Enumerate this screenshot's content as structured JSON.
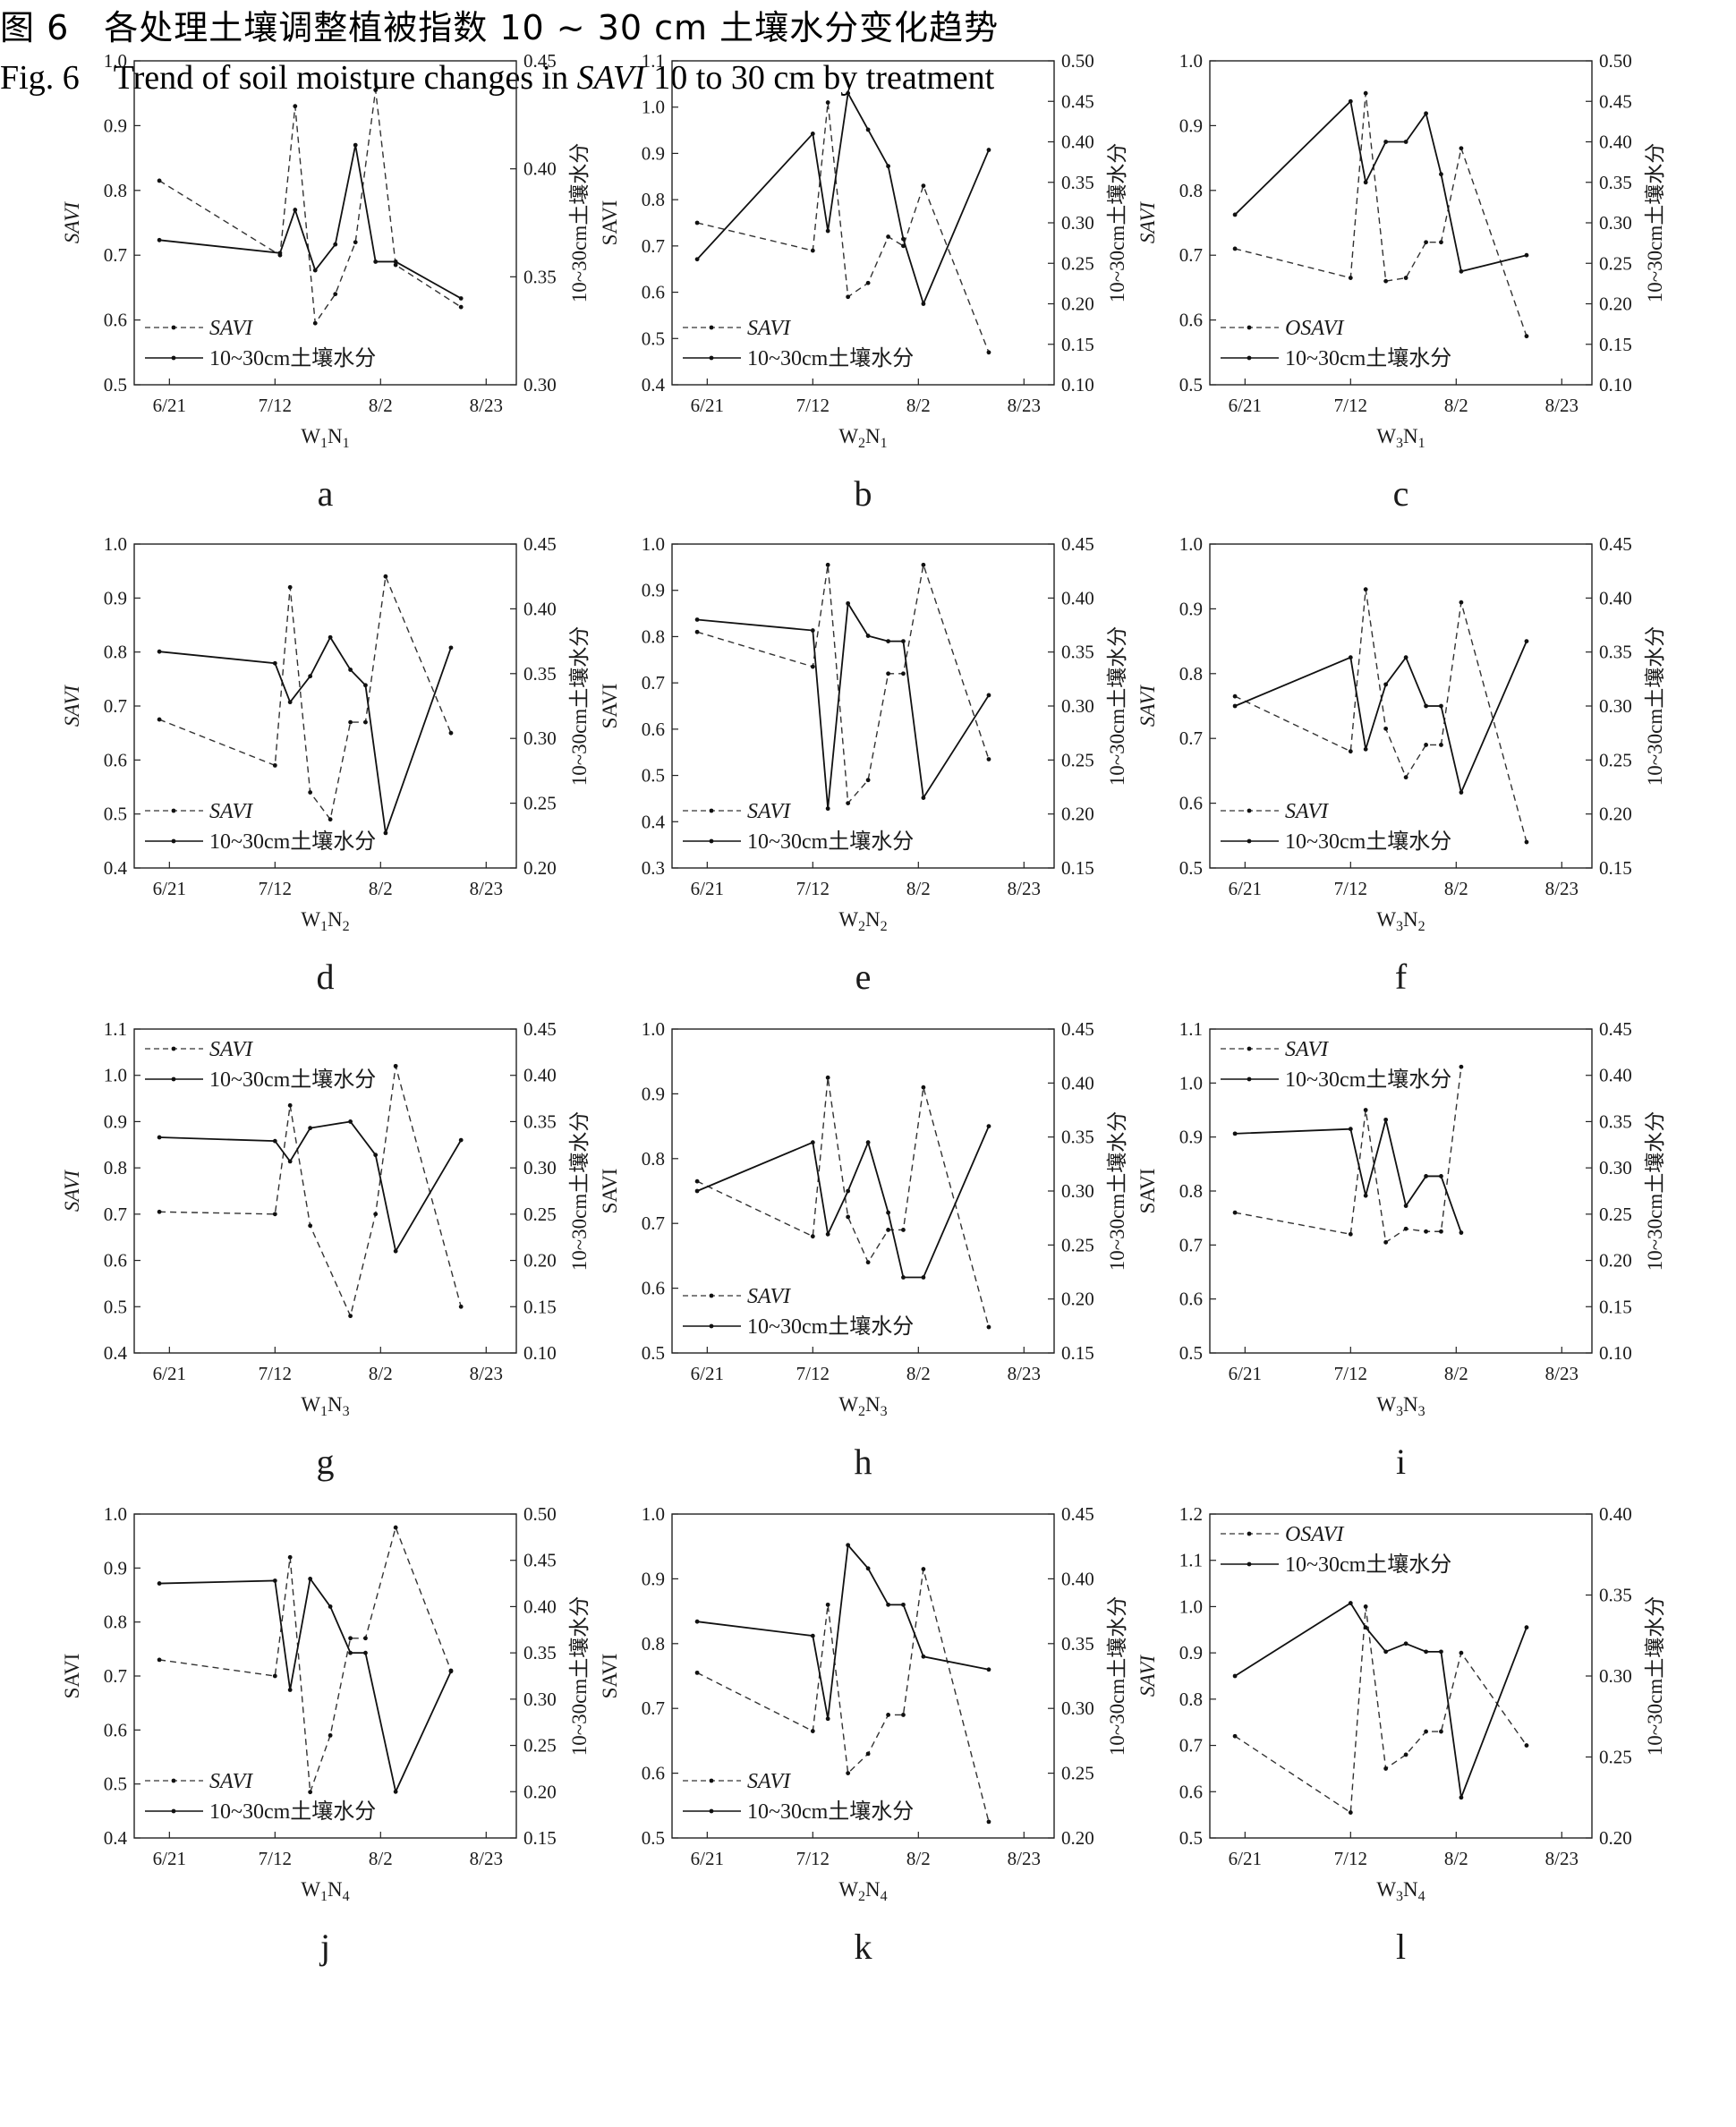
{
  "figure": {
    "caption_cn": "图 6　各处理土壤调整植被指数 10 ~ 30 cm 土壤水分变化趋势",
    "caption_en_prefix": "Fig. 6　Trend of soil moisture changes in ",
    "caption_en_savi": "SAVI",
    "caption_en_suffix": " 10 to 30 cm by treatment",
    "caption_color": "#e8772e",
    "x_tick_labels": [
      "6/21",
      "7/12",
      "8/2",
      "8/23"
    ],
    "right_axis_label": "10~30cm土壤水分",
    "soil_series_label": "10~30cm土壤水分"
  },
  "chart_data": [
    {
      "type": "line",
      "panel": "a",
      "xlabel_main": "W",
      "s1": "1",
      "s2": "N",
      "s3": "1",
      "ylabel": "SAVI",
      "ylabel_italic": true,
      "legend_savi": "SAVI",
      "legend_pos": "bottom-left",
      "ylim": [
        0.5,
        1.0
      ],
      "yticks": [
        "0.5",
        "0.6",
        "0.7",
        "0.8",
        "0.9",
        "1.0"
      ],
      "y2lim": [
        0.3,
        0.45
      ],
      "y2ticks": [
        "0.30",
        "0.35",
        "0.40",
        "0.45"
      ],
      "savi": {
        "x": [
          "6/19",
          "7/13",
          "7/16",
          "7/20",
          "7/24",
          "7/28",
          "8/1",
          "8/5",
          "8/18"
        ],
        "y": [
          0.815,
          0.7,
          0.93,
          0.595,
          0.64,
          0.72,
          0.955,
          0.685,
          0.62
        ]
      },
      "soil": {
        "x": [
          "6/19",
          "7/13",
          "7/16",
          "7/20",
          "7/24",
          "7/28",
          "8/1",
          "8/5",
          "8/18"
        ],
        "y": [
          0.367,
          0.361,
          0.381,
          0.353,
          0.365,
          0.411,
          0.357,
          0.357,
          0.34
        ]
      }
    },
    {
      "type": "line",
      "panel": "b",
      "xlabel_main": "W",
      "s1": "2",
      "s2": "N",
      "s3": "1",
      "ylabel": "SAVI",
      "ylabel_italic": false,
      "legend_savi": "SAVI",
      "legend_pos": "bottom-left",
      "ylim": [
        0.4,
        1.1
      ],
      "yticks": [
        "0.4",
        "0.5",
        "0.6",
        "0.7",
        "0.8",
        "0.9",
        "1.0",
        "1.1"
      ],
      "y2lim": [
        0.1,
        0.5
      ],
      "y2ticks": [
        "0.10",
        "0.15",
        "0.20",
        "0.25",
        "0.30",
        "0.35",
        "0.40",
        "0.45",
        "0.50"
      ],
      "savi": {
        "x": [
          "6/19",
          "7/12",
          "7/15",
          "7/19",
          "7/23",
          "7/27",
          "7/30",
          "8/3",
          "8/16"
        ],
        "y": [
          0.75,
          0.69,
          1.01,
          0.59,
          0.62,
          0.72,
          0.7,
          0.83,
          0.47
        ]
      },
      "soil": {
        "x": [
          "6/19",
          "7/12",
          "7/15",
          "7/19",
          "7/23",
          "7/27",
          "7/30",
          "8/3",
          "8/16"
        ],
        "y": [
          0.255,
          0.41,
          0.29,
          0.46,
          0.415,
          0.37,
          0.28,
          0.2,
          0.39
        ]
      }
    },
    {
      "type": "line",
      "panel": "c",
      "xlabel_main": "W",
      "s1": "3",
      "s2": "N",
      "s3": "1",
      "ylabel": "SAVI",
      "ylabel_italic": true,
      "legend_savi": "OSAVI",
      "legend_pos": "bottom-left",
      "ylim": [
        0.5,
        1.0
      ],
      "yticks": [
        "0.5",
        "0.6",
        "0.7",
        "0.8",
        "0.9",
        "1.0"
      ],
      "y2lim": [
        0.1,
        0.5
      ],
      "y2ticks": [
        "0.10",
        "0.15",
        "0.20",
        "0.25",
        "0.30",
        "0.35",
        "0.40",
        "0.45",
        "0.50"
      ],
      "savi": {
        "x": [
          "6/19",
          "7/12",
          "7/15",
          "7/19",
          "7/23",
          "7/27",
          "7/30",
          "8/3",
          "8/16"
        ],
        "y": [
          0.71,
          0.665,
          0.95,
          0.66,
          0.665,
          0.72,
          0.72,
          0.865,
          0.575
        ]
      },
      "soil": {
        "x": [
          "6/19",
          "7/12",
          "7/15",
          "7/19",
          "7/23",
          "7/27",
          "7/30",
          "8/3",
          "8/16"
        ],
        "y": [
          0.31,
          0.45,
          0.35,
          0.4,
          0.4,
          0.435,
          0.36,
          0.24,
          0.26
        ]
      }
    },
    {
      "type": "line",
      "panel": "d",
      "xlabel_main": "W",
      "s1": "1",
      "s2": "N",
      "s3": "2",
      "ylabel": "SAVI",
      "ylabel_italic": true,
      "legend_savi": "SAVI",
      "legend_pos": "bottom-left",
      "ylim": [
        0.4,
        1.0
      ],
      "yticks": [
        "0.4",
        "0.5",
        "0.6",
        "0.7",
        "0.8",
        "0.9",
        "1.0"
      ],
      "y2lim": [
        0.2,
        0.45
      ],
      "y2ticks": [
        "0.20",
        "0.25",
        "0.30",
        "0.35",
        "0.40",
        "0.45"
      ],
      "savi": {
        "x": [
          "6/19",
          "7/12",
          "7/15",
          "7/19",
          "7/23",
          "7/27",
          "7/30",
          "8/3",
          "8/16"
        ],
        "y": [
          0.675,
          0.59,
          0.92,
          0.54,
          0.49,
          0.67,
          0.67,
          0.94,
          0.65
        ]
      },
      "soil": {
        "x": [
          "6/19",
          "7/12",
          "7/15",
          "7/19",
          "7/23",
          "7/27",
          "7/30",
          "8/3",
          "8/16"
        ],
        "y": [
          0.367,
          0.358,
          0.328,
          0.348,
          0.378,
          0.353,
          0.341,
          0.227,
          0.37
        ]
      }
    },
    {
      "type": "line",
      "panel": "e",
      "xlabel_main": "W",
      "s1": "2",
      "s2": "N",
      "s3": "2",
      "ylabel": "SAVI",
      "ylabel_italic": false,
      "legend_savi": "SAVI",
      "legend_pos": "bottom-left",
      "ylim": [
        0.3,
        1.0
      ],
      "yticks": [
        "0.3",
        "0.4",
        "0.5",
        "0.6",
        "0.7",
        "0.8",
        "0.9",
        "1.0"
      ],
      "y2lim": [
        0.15,
        0.45
      ],
      "y2ticks": [
        "0.15",
        "0.20",
        "0.25",
        "0.30",
        "0.35",
        "0.40",
        "0.45"
      ],
      "savi": {
        "x": [
          "6/19",
          "7/12",
          "7/15",
          "7/19",
          "7/23",
          "7/27",
          "7/30",
          "8/3",
          "8/16"
        ],
        "y": [
          0.81,
          0.735,
          0.955,
          0.44,
          0.49,
          0.72,
          0.72,
          0.955,
          0.535
        ]
      },
      "soil": {
        "x": [
          "6/19",
          "7/12",
          "7/15",
          "7/19",
          "7/23",
          "7/27",
          "7/30",
          "8/3",
          "8/16"
        ],
        "y": [
          0.38,
          0.37,
          0.205,
          0.395,
          0.365,
          0.36,
          0.36,
          0.215,
          0.31
        ]
      }
    },
    {
      "type": "line",
      "panel": "f",
      "xlabel_main": "W",
      "s1": "3",
      "s2": "N",
      "s3": "2",
      "ylabel": "SAVI",
      "ylabel_italic": true,
      "legend_savi": "SAVI",
      "legend_pos": "bottom-left",
      "ylim": [
        0.5,
        1.0
      ],
      "yticks": [
        "0.5",
        "0.6",
        "0.7",
        "0.8",
        "0.9",
        "1.0"
      ],
      "y2lim": [
        0.15,
        0.45
      ],
      "y2ticks": [
        "0.15",
        "0.20",
        "0.25",
        "0.30",
        "0.35",
        "0.40",
        "0.45"
      ],
      "savi": {
        "x": [
          "6/19",
          "7/12",
          "7/15",
          "7/19",
          "7/23",
          "7/27",
          "7/30",
          "8/3",
          "8/16"
        ],
        "y": [
          0.765,
          0.68,
          0.93,
          0.715,
          0.64,
          0.69,
          0.69,
          0.91,
          0.54
        ]
      },
      "soil": {
        "x": [
          "6/19",
          "7/12",
          "7/15",
          "7/19",
          "7/23",
          "7/27",
          "7/30",
          "8/3",
          "8/16"
        ],
        "y": [
          0.3,
          0.345,
          0.26,
          0.32,
          0.345,
          0.3,
          0.3,
          0.22,
          0.36
        ]
      }
    },
    {
      "type": "line",
      "panel": "g",
      "xlabel_main": "W",
      "s1": "1",
      "s2": "N",
      "s3": "3",
      "ylabel": "SAVI",
      "ylabel_italic": true,
      "legend_savi": "SAVI",
      "legend_pos": "top-left",
      "ylim": [
        0.4,
        1.1
      ],
      "yticks": [
        "0.4",
        "0.5",
        "0.6",
        "0.7",
        "0.8",
        "0.9",
        "1.0",
        "1.1"
      ],
      "y2lim": [
        0.1,
        0.45
      ],
      "y2ticks": [
        "0.10",
        "0.15",
        "0.20",
        "0.25",
        "0.30",
        "0.35",
        "0.40",
        "0.45"
      ],
      "savi": {
        "x": [
          "6/19",
          "7/12",
          "7/15",
          "7/19",
          "7/27",
          "8/1",
          "8/5",
          "8/18"
        ],
        "y": [
          0.705,
          0.7,
          0.935,
          0.675,
          0.48,
          0.7,
          1.02,
          0.5
        ]
      },
      "soil": {
        "x": [
          "6/19",
          "7/12",
          "7/15",
          "7/19",
          "7/27",
          "8/1",
          "8/5",
          "8/18"
        ],
        "y": [
          0.333,
          0.329,
          0.307,
          0.343,
          0.35,
          0.314,
          0.21,
          0.33
        ]
      }
    },
    {
      "type": "line",
      "panel": "h",
      "xlabel_main": "W",
      "s1": "2",
      "s2": "N",
      "s3": "3",
      "ylabel": "SAVI",
      "ylabel_italic": false,
      "legend_savi": "SAVI",
      "legend_pos": "bottom-left",
      "ylim": [
        0.5,
        1.0
      ],
      "yticks": [
        "0.5",
        "0.6",
        "0.7",
        "0.8",
        "0.9",
        "1.0"
      ],
      "y2lim": [
        0.15,
        0.45
      ],
      "y2ticks": [
        "0.15",
        "0.20",
        "0.25",
        "0.30",
        "0.35",
        "0.40",
        "0.45"
      ],
      "savi": {
        "x": [
          "6/19",
          "7/12",
          "7/15",
          "7/19",
          "7/23",
          "7/27",
          "7/30",
          "8/3",
          "8/16"
        ],
        "y": [
          0.765,
          0.68,
          0.925,
          0.71,
          0.64,
          0.69,
          0.69,
          0.91,
          0.54
        ]
      },
      "soil": {
        "x": [
          "6/19",
          "7/12",
          "7/15",
          "7/19",
          "7/23",
          "7/27",
          "7/30",
          "8/3",
          "8/16"
        ],
        "y": [
          0.3,
          0.345,
          0.26,
          0.3,
          0.345,
          0.28,
          0.22,
          0.22,
          0.36
        ]
      }
    },
    {
      "type": "line",
      "panel": "i",
      "xlabel_main": "W",
      "s1": "3",
      "s2": "N",
      "s3": "3",
      "ylabel": "SAVI",
      "ylabel_italic": false,
      "legend_savi": "SAVI",
      "legend_pos": "top-left",
      "ylim": [
        0.5,
        1.1
      ],
      "yticks": [
        "0.5",
        "0.6",
        "0.7",
        "0.8",
        "0.9",
        "1.0",
        "1.1"
      ],
      "y2lim": [
        0.1,
        0.45
      ],
      "y2ticks": [
        "0.10",
        "0.15",
        "0.20",
        "0.25",
        "0.30",
        "0.35",
        "0.40",
        "0.45"
      ],
      "savi": {
        "x": [
          "6/19",
          "7/12",
          "7/15",
          "7/19",
          "7/23",
          "7/27",
          "7/30",
          "8/3"
        ],
        "y": [
          0.76,
          0.72,
          0.95,
          0.705,
          0.73,
          0.725,
          0.725,
          1.03
        ]
      },
      "soil": {
        "x": [
          "6/19",
          "7/12",
          "7/15",
          "7/19",
          "7/23",
          "7/27",
          "7/30",
          "8/3"
        ],
        "y": [
          0.337,
          0.342,
          0.27,
          0.352,
          0.259,
          0.291,
          0.291,
          0.23
        ]
      }
    },
    {
      "type": "line",
      "panel": "j",
      "xlabel_main": "W",
      "s1": "1",
      "s2": "N",
      "s3": "4",
      "ylabel": "SAVI",
      "ylabel_italic": false,
      "legend_savi": "SAVI",
      "legend_pos": "bottom-left",
      "ylim": [
        0.4,
        1.0
      ],
      "yticks": [
        "0.4",
        "0.5",
        "0.6",
        "0.7",
        "0.8",
        "0.9",
        "1.0"
      ],
      "y2lim": [
        0.15,
        0.5
      ],
      "y2ticks": [
        "0.15",
        "0.20",
        "0.25",
        "0.30",
        "0.35",
        "0.40",
        "0.45",
        "0.50"
      ],
      "savi": {
        "x": [
          "6/19",
          "7/12",
          "7/15",
          "7/19",
          "7/23",
          "7/27",
          "7/30",
          "8/5",
          "8/16"
        ],
        "y": [
          0.73,
          0.7,
          0.92,
          0.485,
          0.59,
          0.77,
          0.77,
          0.975,
          0.71
        ]
      },
      "soil": {
        "x": [
          "6/19",
          "7/12",
          "7/15",
          "7/19",
          "7/23",
          "7/27",
          "7/30",
          "8/5",
          "8/16"
        ],
        "y": [
          0.425,
          0.428,
          0.31,
          0.43,
          0.4,
          0.35,
          0.35,
          0.2,
          0.33
        ]
      }
    },
    {
      "type": "line",
      "panel": "k",
      "xlabel_main": "W",
      "s1": "2",
      "s2": "N",
      "s3": "4",
      "ylabel": "SAVI",
      "ylabel_italic": false,
      "legend_savi": "SAVI",
      "legend_pos": "bottom-left",
      "ylim": [
        0.5,
        1.0
      ],
      "yticks": [
        "0.5",
        "0.6",
        "0.7",
        "0.8",
        "0.9",
        "1.0"
      ],
      "y2lim": [
        0.2,
        0.45
      ],
      "y2ticks": [
        "0.20",
        "0.25",
        "0.30",
        "0.35",
        "0.40",
        "0.45"
      ],
      "savi": {
        "x": [
          "6/19",
          "7/12",
          "7/15",
          "7/19",
          "7/23",
          "7/27",
          "7/30",
          "8/3",
          "8/16"
        ],
        "y": [
          0.755,
          0.665,
          0.86,
          0.6,
          0.63,
          0.69,
          0.69,
          0.915,
          0.525
        ]
      },
      "soil": {
        "x": [
          "6/19",
          "7/12",
          "7/15",
          "7/19",
          "7/23",
          "7/27",
          "7/30",
          "8/3",
          "8/16"
        ],
        "y": [
          0.367,
          0.356,
          0.292,
          0.426,
          0.408,
          0.38,
          0.38,
          0.34,
          0.33
        ]
      }
    },
    {
      "type": "line",
      "panel": "l",
      "xlabel_main": "W",
      "s1": "3",
      "s2": "N",
      "s3": "4",
      "ylabel": "SAVI",
      "ylabel_italic": true,
      "legend_savi": "OSAVI",
      "legend_pos": "top-left",
      "ylim": [
        0.5,
        1.2
      ],
      "yticks": [
        "0.5",
        "0.6",
        "0.7",
        "0.8",
        "0.9",
        "1.0",
        "1.1",
        "1.2"
      ],
      "y2lim": [
        0.2,
        0.4
      ],
      "y2ticks": [
        "0.20",
        "0.25",
        "0.30",
        "0.35",
        "0.40"
      ],
      "savi": {
        "x": [
          "6/19",
          "7/12",
          "7/15",
          "7/19",
          "7/23",
          "7/27",
          "7/30",
          "8/3",
          "8/16"
        ],
        "y": [
          0.72,
          0.555,
          1.0,
          0.65,
          0.68,
          0.73,
          0.73,
          0.9,
          0.7
        ]
      },
      "soil": {
        "x": [
          "6/19",
          "7/12",
          "7/15",
          "7/19",
          "7/23",
          "7/27",
          "7/30",
          "8/3",
          "8/16"
        ],
        "y": [
          0.3,
          0.345,
          0.33,
          0.315,
          0.32,
          0.315,
          0.315,
          0.225,
          0.33
        ]
      }
    }
  ]
}
